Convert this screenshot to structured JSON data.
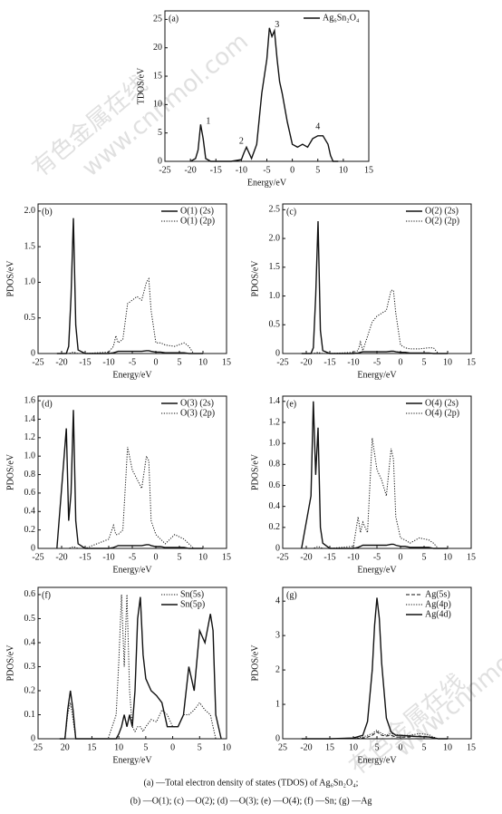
{
  "chart_data": [
    {
      "type": "line",
      "panel_label": "(a)",
      "x_label": "Energy/eV",
      "y_label": "TDOS/eV",
      "legend": "upper right",
      "xlim": [
        -25,
        15
      ],
      "xticks": [
        -25,
        -20,
        -15,
        -10,
        -5,
        0,
        5,
        10,
        15
      ],
      "ylim": [
        0,
        26.5
      ],
      "yticks": [
        0,
        5,
        10,
        15,
        20,
        25
      ],
      "x": [
        -20,
        -19,
        -18.5,
        -18,
        -17.5,
        -17,
        -16,
        -12,
        -10,
        -9.5,
        -9,
        -8.5,
        -8,
        -7,
        -6,
        -5,
        -4.5,
        -4,
        -3.5,
        -3,
        -2.5,
        -2,
        -1,
        0,
        1,
        2,
        3,
        4,
        5,
        6,
        7,
        7.5,
        8,
        9
      ],
      "series": [
        {
          "name": "Ag₆Sn₂O₄",
          "color": "#111111",
          "linestyle": "solid",
          "values": [
            0,
            0.5,
            2,
            6.5,
            4,
            0.5,
            0,
            0,
            0.3,
            1.5,
            2.5,
            1.5,
            0.5,
            3,
            12,
            18,
            23.5,
            22,
            23,
            18,
            14,
            12,
            7,
            3,
            2.5,
            3,
            2.5,
            4,
            4.5,
            4.5,
            3,
            1,
            0,
            0
          ]
        }
      ],
      "annotations": [
        {
          "label": "1",
          "x": -16.5,
          "y": 7
        },
        {
          "label": "2",
          "x": -10,
          "y": 3.5
        },
        {
          "label": "3",
          "x": -3,
          "y": 24
        },
        {
          "label": "4",
          "x": 5,
          "y": 6
        }
      ]
    },
    {
      "type": "line",
      "panel_label": "(b)",
      "x_label": "Energy/eV",
      "y_label": "PDOS/eV",
      "legend": "upper right",
      "xlim": [
        -25,
        15
      ],
      "xticks": [
        -25,
        -20,
        -15,
        -10,
        -5,
        0,
        5,
        10,
        15
      ],
      "ylim": [
        0,
        2.1
      ],
      "yticks": [
        0,
        0.5,
        {
          "value": 1,
          "label": "1.0"
        },
        1.5,
        {
          "value": 2,
          "label": "2.0"
        }
      ],
      "x": [
        -21,
        -19,
        -18.5,
        -18,
        -17.5,
        -17,
        -16.5,
        -15,
        -10,
        -9,
        -8.5,
        -8,
        -7,
        -6,
        -5,
        -4,
        -3,
        -2,
        -1.5,
        -1,
        0,
        1,
        2,
        4,
        6,
        7,
        8,
        10
      ],
      "series": [
        {
          "name": "O(1) (2s)",
          "color": "#111111",
          "linestyle": "solid",
          "values": [
            0,
            0,
            0.1,
            0.8,
            1.9,
            0.4,
            0.05,
            0,
            0,
            0.01,
            0.02,
            0.03,
            0.03,
            0.03,
            0.03,
            0.03,
            0.03,
            0.04,
            0.04,
            0.03,
            0.02,
            0.02,
            0.01,
            0.01,
            0.01,
            0,
            0,
            0
          ]
        },
        {
          "name": "O(1) (2p)",
          "color": "#111111",
          "linestyle": "dotted",
          "values": [
            0,
            0,
            0,
            0.01,
            0.02,
            0.01,
            0,
            0,
            0.02,
            0.1,
            0.25,
            0.15,
            0.2,
            0.7,
            0.75,
            0.8,
            0.75,
            1,
            1.05,
            0.6,
            0.15,
            0.15,
            0.12,
            0.1,
            0.15,
            0.1,
            0,
            0
          ]
        }
      ]
    },
    {
      "type": "line",
      "panel_label": "(c)",
      "x_label": "Energy/eV",
      "y_label": "PDOS/eV",
      "legend": "upper right",
      "xlim": [
        -25,
        15
      ],
      "xticks": [
        -25,
        -20,
        -15,
        -10,
        -5,
        0,
        5,
        10,
        15
      ],
      "ylim": [
        0,
        2.6
      ],
      "yticks": [
        0,
        0.5,
        {
          "value": 1,
          "label": "1.0"
        },
        1.5,
        {
          "value": 2,
          "label": "2.0"
        },
        2.5
      ],
      "x": [
        -21,
        -19,
        -18.5,
        -18,
        -17.5,
        -17,
        -16.5,
        -15,
        -10,
        -9,
        -8.5,
        -8,
        -7,
        -6,
        -5,
        -4,
        -3,
        -2,
        -1.5,
        -1,
        0,
        1,
        2,
        4,
        6,
        7,
        8,
        10
      ],
      "series": [
        {
          "name": "O(2) (2s)",
          "color": "#111111",
          "linestyle": "solid",
          "values": [
            0,
            0,
            0.1,
            1,
            2.3,
            0.4,
            0.05,
            0,
            0,
            0.01,
            0.02,
            0.03,
            0.03,
            0.03,
            0.03,
            0.03,
            0.03,
            0.04,
            0.04,
            0.03,
            0.02,
            0.02,
            0.01,
            0.01,
            0.01,
            0,
            0,
            0
          ]
        },
        {
          "name": "O(2) (2p)",
          "color": "#111111",
          "linestyle": "dotted",
          "values": [
            0,
            0,
            0,
            0.01,
            0.02,
            0.01,
            0,
            0,
            0.02,
            0.05,
            0.2,
            0.05,
            0.3,
            0.55,
            0.65,
            0.7,
            0.75,
            1.1,
            1.1,
            0.7,
            0.15,
            0.1,
            0.08,
            0.08,
            0.1,
            0.1,
            0,
            0
          ]
        }
      ]
    },
    {
      "type": "line",
      "panel_label": "(d)",
      "x_label": "Energy/eV",
      "y_label": "PDOS/eV",
      "legend": "upper right",
      "xlim": [
        -25,
        15
      ],
      "xticks": [
        -25,
        -20,
        -15,
        -10,
        -5,
        0,
        5,
        10,
        15
      ],
      "ylim": [
        0,
        1.65
      ],
      "yticks": [
        0,
        0.2,
        0.4,
        0.6,
        0.8,
        {
          "value": 1,
          "label": "1.0"
        },
        1.2,
        1.4,
        1.6
      ],
      "x": [
        -21,
        -19,
        -18.5,
        -18,
        -17.5,
        -17,
        -16.5,
        -15,
        -10,
        -9,
        -8.5,
        -8,
        -7,
        -6,
        -5,
        -4,
        -3,
        -2,
        -1.5,
        -1,
        0,
        1,
        2,
        4,
        6,
        7,
        8,
        10
      ],
      "series": [
        {
          "name": "O(3) (2s)",
          "color": "#111111",
          "linestyle": "solid",
          "values": [
            0,
            1.3,
            0.3,
            0.6,
            1.5,
            0.3,
            0.05,
            0,
            0,
            0.01,
            0.02,
            0.03,
            0.03,
            0.03,
            0.03,
            0.03,
            0.03,
            0.04,
            0.04,
            0.03,
            0.02,
            0.02,
            0.01,
            0.01,
            0.01,
            0,
            0,
            0
          ]
        },
        {
          "name": "O(3) (2p)",
          "color": "#111111",
          "linestyle": "dotted",
          "values": [
            0,
            0,
            0,
            0.01,
            0.02,
            0.01,
            0,
            0,
            0.1,
            0.25,
            0.15,
            0.15,
            0.2,
            1.1,
            0.85,
            0.75,
            0.65,
            1,
            0.95,
            0.3,
            0.15,
            0.1,
            0.05,
            0.15,
            0.1,
            0.05,
            0,
            0
          ]
        }
      ]
    },
    {
      "type": "line",
      "panel_label": "(e)",
      "x_label": "Energy/eV",
      "y_label": "PDOS/eV",
      "legend": "upper right",
      "xlim": [
        -25,
        15
      ],
      "xticks": [
        -25,
        -20,
        -15,
        -10,
        -5,
        0,
        5,
        10,
        15
      ],
      "ylim": [
        0,
        1.45
      ],
      "yticks": [
        0,
        0.2,
        0.4,
        0.6,
        0.8,
        {
          "value": 1,
          "label": "1.0"
        },
        1.2,
        1.4
      ],
      "x": [
        -21,
        -19,
        -18.5,
        -18,
        -17.5,
        -17,
        -16.5,
        -15,
        -10,
        -9,
        -8.5,
        -8,
        -7,
        -6,
        -5,
        -4,
        -3,
        -2,
        -1.5,
        -1,
        0,
        1,
        2,
        4,
        6,
        7,
        8,
        10
      ],
      "series": [
        {
          "name": "O(4) (2s)",
          "color": "#111111",
          "linestyle": "solid",
          "values": [
            0,
            0.5,
            1.4,
            0.7,
            1.15,
            0.2,
            0.05,
            0,
            0,
            0.01,
            0.02,
            0.03,
            0.03,
            0.03,
            0.03,
            0.03,
            0.03,
            0.04,
            0.04,
            0.03,
            0.02,
            0.02,
            0.01,
            0.01,
            0.01,
            0,
            0,
            0
          ]
        },
        {
          "name": "O(4) (2p)",
          "color": "#111111",
          "linestyle": "dotted",
          "values": [
            0,
            0,
            0,
            0.01,
            0.02,
            0.01,
            0,
            0,
            0.02,
            0.3,
            0.15,
            0.25,
            0.15,
            1.05,
            0.75,
            0.65,
            0.5,
            0.95,
            0.85,
            0.3,
            0.1,
            0.08,
            0.05,
            0.1,
            0.08,
            0.05,
            0,
            0
          ]
        }
      ]
    },
    {
      "type": "line",
      "panel_label": "(f)",
      "x_label": "Energy/eV",
      "y_label": "PDOS/eV",
      "legend": "upper right",
      "xlim": [
        -25,
        10
      ],
      "xticks": [
        {
          "value": -25,
          "label": "25"
        },
        {
          "value": -20,
          "label": "20"
        },
        {
          "value": -15,
          "label": "15"
        },
        {
          "value": -10,
          "label": "10"
        },
        {
          "value": -5,
          "label": "5"
        },
        0,
        5,
        10
      ],
      "ylim": [
        0,
        0.63
      ],
      "yticks": [
        0,
        0.1,
        0.2,
        0.3,
        0.4,
        0.5,
        0.6
      ],
      "x": [
        -21,
        -20,
        -19.5,
        -19,
        -18.5,
        -18,
        -17,
        -12,
        -10.5,
        -10,
        -9.5,
        -9,
        -8.5,
        -8,
        -7.5,
        -7,
        -6.5,
        -6,
        -5.5,
        -5,
        -4,
        -3,
        -2,
        -1,
        0,
        1,
        2,
        3,
        4,
        5,
        6,
        7,
        7.5,
        8,
        9
      ],
      "series": [
        {
          "name": "Sn(5s)",
          "color": "#111111",
          "linestyle": "dotted",
          "values": [
            0,
            0,
            0.1,
            0.15,
            0.08,
            0,
            0,
            0,
            0.1,
            0.32,
            0.6,
            0.3,
            0.6,
            0.2,
            0.05,
            0.03,
            0.05,
            0.05,
            0.03,
            0.05,
            0.08,
            0.07,
            0.12,
            0.1,
            0.05,
            0.05,
            0.1,
            0.1,
            0.12,
            0.15,
            0.12,
            0.1,
            0.05,
            0,
            0
          ]
        },
        {
          "name": "Sn(5p)",
          "color": "#111111",
          "linestyle": "solid",
          "values": [
            0,
            0,
            0.12,
            0.2,
            0.12,
            0,
            0,
            0,
            0,
            0.02,
            0.05,
            0.1,
            0.05,
            0.1,
            0.05,
            0.2,
            0.5,
            0.59,
            0.35,
            0.25,
            0.2,
            0.18,
            0.15,
            0.05,
            0.05,
            0.05,
            0.1,
            0.3,
            0.2,
            0.45,
            0.4,
            0.52,
            0.45,
            0.1,
            0
          ]
        }
      ]
    },
    {
      "type": "line",
      "panel_label": "(g)",
      "x_label": "Energy/eV",
      "y_label": "PDOS/eV",
      "legend": "upper right",
      "xlim": [
        -25,
        15
      ],
      "xticks": [
        {
          "value": -25,
          "label": "25"
        },
        -20,
        {
          "value": -15,
          "label": "15"
        },
        {
          "value": -10,
          "label": "10"
        },
        {
          "value": -5,
          "label": "5"
        },
        0,
        5,
        10,
        15
      ],
      "ylim": [
        0,
        4.4
      ],
      "yticks": [
        0,
        1,
        2,
        3,
        4
      ],
      "x": [
        -21,
        -15,
        -10,
        -8,
        -7,
        -6,
        -5.5,
        -5,
        -4.5,
        -4,
        -3,
        -2,
        -1,
        0,
        2,
        4,
        6,
        7,
        8,
        10
      ],
      "series": [
        {
          "name": "Ag(5s)",
          "color": "#111111",
          "linestyle": "dashed",
          "values": [
            0,
            0,
            0,
            0.02,
            0.05,
            0.1,
            0.15,
            0.2,
            0.15,
            0.1,
            0.08,
            0.1,
            0.05,
            0.05,
            0.05,
            0.08,
            0.06,
            0.03,
            0,
            0
          ]
        },
        {
          "name": "Ag(4p)",
          "color": "#111111",
          "linestyle": "dotted",
          "values": [
            0,
            0,
            0,
            0.05,
            0.1,
            0.15,
            0.2,
            0.25,
            0.2,
            0.15,
            0.1,
            0.15,
            0.12,
            0.1,
            0.1,
            0.15,
            0.12,
            0.05,
            0,
            0
          ]
        },
        {
          "name": "Ag(4d)",
          "color": "#111111",
          "linestyle": "solid",
          "values": [
            0,
            0,
            0.02,
            0.1,
            0.5,
            2,
            3.3,
            4.1,
            3.5,
            2.2,
            0.6,
            0.2,
            0.1,
            0.1,
            0.08,
            0.06,
            0.05,
            0.03,
            0,
            0
          ]
        }
      ]
    }
  ],
  "caption": {
    "line1": "(a) —Total electron density of states (TDOS) of Ag₆Sn₂O₄;",
    "line2": "(b) —O(1); (c) —O(2); (d) —O(3); (e) —O(4); (f) —Sn; (g) —Ag"
  },
  "watermark": [
    "有色金属在线",
    "www.cnnmol.com"
  ]
}
